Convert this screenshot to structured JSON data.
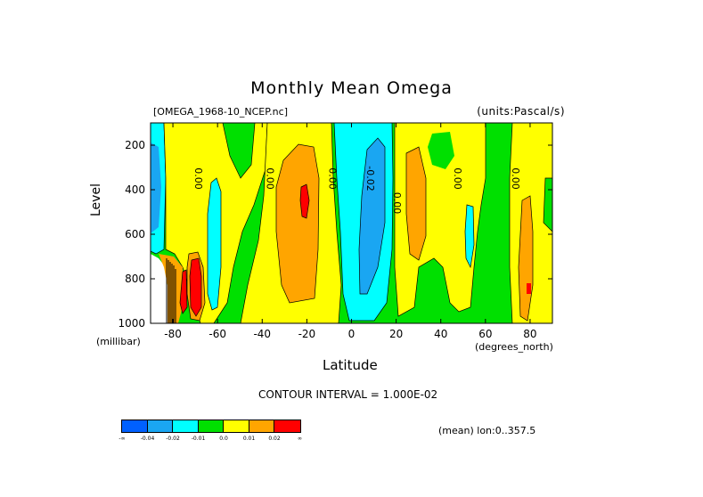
{
  "header": {
    "title": "Monthly Mean Omega",
    "file": "[OMEGA_1968-10_NCEP.nc]",
    "units": "(units:Pascal/s)"
  },
  "axes": {
    "ylabel": "Level",
    "yunit": "(millibar)",
    "xlabel": "Latitude",
    "xunit": "(degrees_north)"
  },
  "footer": {
    "contour_interval": "CONTOUR INTERVAL = 1.000E-02",
    "mean": "(mean) lon:0..357.5"
  },
  "colorbar": {
    "colors": [
      "#0060ff",
      "#1aa6f2",
      "#00ffff",
      "#00e000",
      "#ffff00",
      "#ffa500",
      "#ff0000"
    ],
    "labels": [
      "-∞",
      "-0.04",
      "-0.02",
      "-0.01",
      "0.0",
      "0.01",
      "0.02",
      "∞"
    ]
  },
  "chart_data": {
    "type": "heatmap",
    "title": "Monthly Mean Omega",
    "xlabel": "Latitude",
    "ylabel": "Level",
    "xlim": [
      -90,
      90
    ],
    "ylim": [
      1000,
      100
    ],
    "xticks": [
      -80,
      -60,
      -40,
      -20,
      0,
      20,
      40,
      60,
      80
    ],
    "yticks": [
      200,
      400,
      600,
      800,
      1000
    ],
    "contour_labels": [
      {
        "text": "0.00",
        "lat": -70,
        "level": 350
      },
      {
        "text": "0.00",
        "lat": -38,
        "level": 350
      },
      {
        "text": "0.00",
        "lat": -10,
        "level": 350
      },
      {
        "text": "0.00",
        "lat": 19,
        "level": 460
      },
      {
        "text": "0.00",
        "lat": 46,
        "level": 350
      },
      {
        "text": "0.00",
        "lat": 72,
        "level": 350
      },
      {
        "text": "-0.02",
        "lat": 7,
        "level": 350
      }
    ],
    "grid": false
  }
}
